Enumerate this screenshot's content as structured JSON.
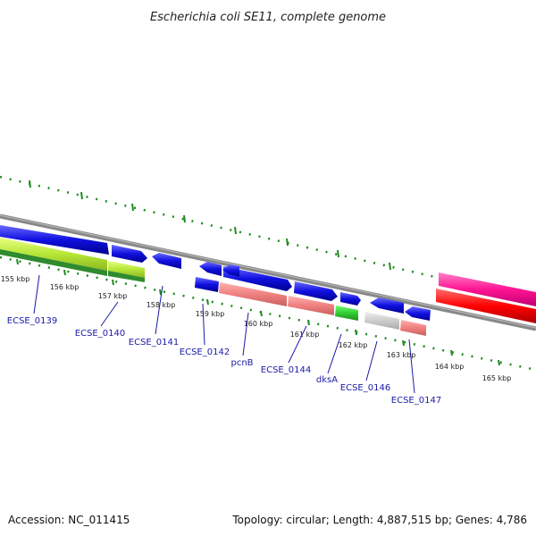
{
  "title": "Escherichia coli SE11, complete genome",
  "accession": "Accession: NC_011415",
  "summary": "Topology: circular; Length: 4,887,515 bp; Genes: 4,786",
  "colors": {
    "backbone": "#888888",
    "cds_blue": "#1010e0",
    "pink": "#f08080",
    "green": "#32cd32",
    "yellow_green": "#b6e637",
    "dark_green": "#2e8b2e",
    "grey": "#cccccc",
    "magenta": "#ff1493",
    "red": "#ff0000",
    "ruler": "#1f8a1f",
    "label": "#1a1aa6"
  },
  "kbp_ticks": [
    "155 kbp",
    "156 kbp",
    "157 kbp",
    "158 kbp",
    "159 kbp",
    "160 kbp",
    "161 kbp",
    "162 kbp",
    "163 kbp",
    "164 kbp",
    "165 kbp"
  ],
  "genes": [
    "ECSE_0139",
    "ECSE_0140",
    "ECSE_0141",
    "ECSE_0142",
    "pcnB",
    "ECSE_0144",
    "dksA",
    "ECSE_0146",
    "ECSE_0147"
  ]
}
